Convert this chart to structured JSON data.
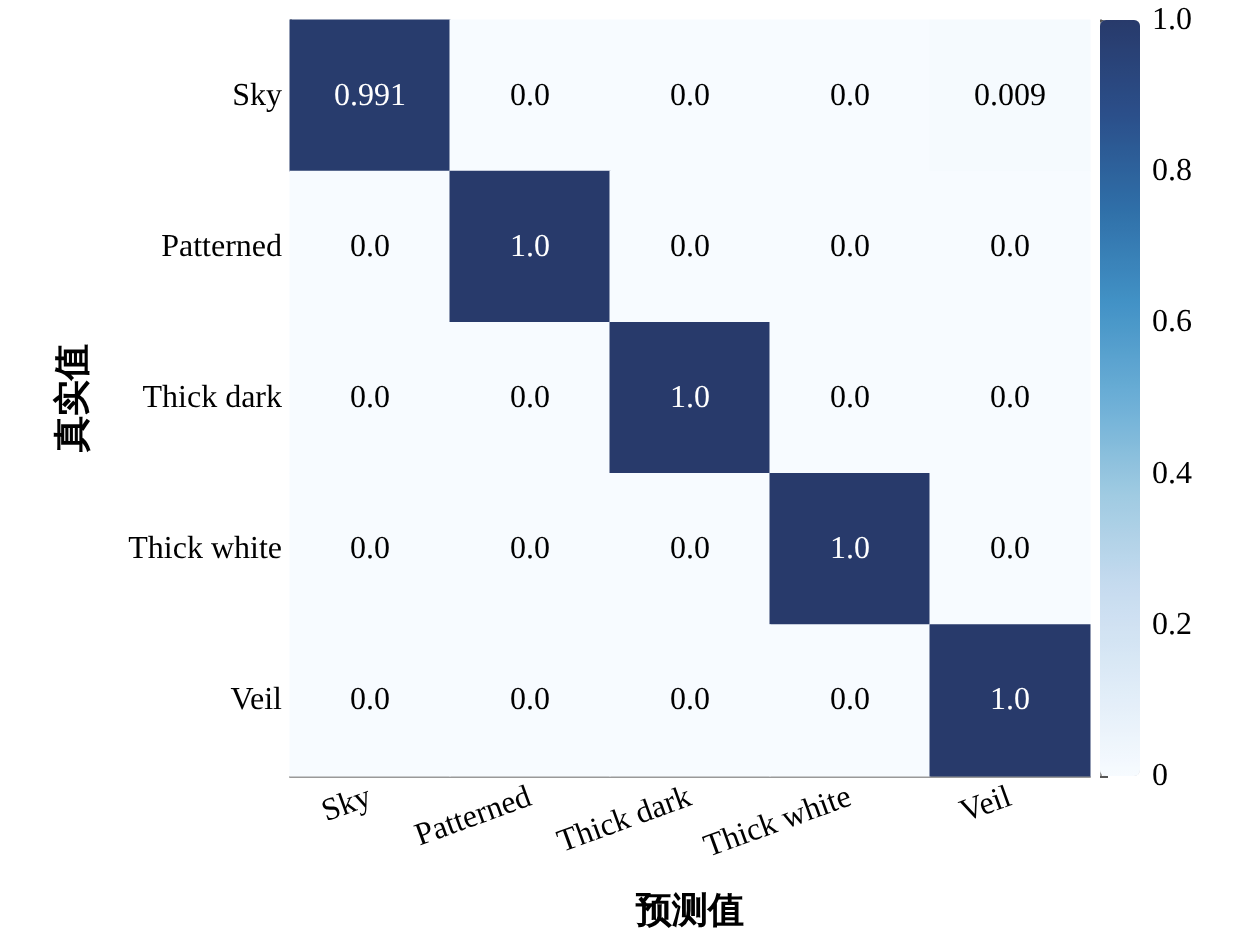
{
  "chart_data": {
    "type": "heatmap",
    "xlabel": "预测值",
    "ylabel": "真实值",
    "categories": [
      "Sky",
      "Patterned",
      "Thick dark",
      "Thick white",
      "Veil"
    ],
    "y_categories": [
      "Sky",
      "Patterned",
      "Thick dark",
      "Thick white",
      "Veil"
    ],
    "cells": [
      [
        0.991,
        0,
        0,
        0,
        0.009
      ],
      [
        0,
        1,
        0,
        0,
        0
      ],
      [
        0,
        0,
        1,
        0,
        0
      ],
      [
        0,
        0,
        0,
        1,
        0
      ],
      [
        0,
        0,
        0,
        0,
        1
      ]
    ],
    "cell_labels": [
      [
        "0.991",
        "0.0",
        "0.0",
        "0.0",
        "0.009"
      ],
      [
        "0.0",
        "1.0",
        "0.0",
        "0.0",
        "0.0"
      ],
      [
        "0.0",
        "0.0",
        "1.0",
        "0.0",
        "0.0"
      ],
      [
        "0.0",
        "0.0",
        "0.0",
        "1.0",
        "0.0"
      ],
      [
        "0.0",
        "0.0",
        "0.0",
        "0.0",
        "1.0"
      ]
    ],
    "clim": [
      0,
      1
    ],
    "cticks": [
      0,
      0.2,
      0.4,
      0.6,
      0.8,
      {
        "value": 1,
        "label": "1.0"
      }
    ]
  }
}
